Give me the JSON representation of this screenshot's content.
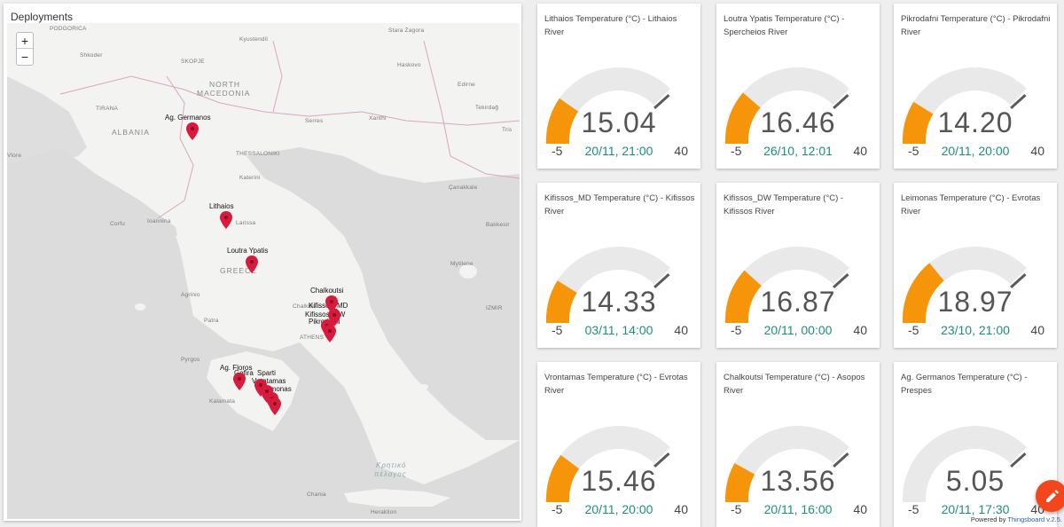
{
  "map": {
    "title": "Deployments",
    "zoom_in": "+",
    "zoom_out": "−",
    "places": [
      {
        "name": "PODGORICA",
        "cls": ""
      },
      {
        "name": "Kyustendil",
        "cls": ""
      },
      {
        "name": "Stara Zagora",
        "cls": ""
      },
      {
        "name": "Shkoder",
        "cls": ""
      },
      {
        "name": "SKOPJE",
        "cls": ""
      },
      {
        "name": "Haskovo",
        "cls": ""
      },
      {
        "name": "NORTH",
        "cls": "big"
      },
      {
        "name": "MACEDONIA",
        "cls": "big"
      },
      {
        "name": "Edirne",
        "cls": ""
      },
      {
        "name": "TIRANA",
        "cls": ""
      },
      {
        "name": "ALBANIA",
        "cls": "big"
      },
      {
        "name": "Serres",
        "cls": ""
      },
      {
        "name": "Xanthi",
        "cls": ""
      },
      {
        "name": "Tekirdağ",
        "cls": ""
      },
      {
        "name": "Tris",
        "cls": ""
      },
      {
        "name": "Vlore",
        "cls": ""
      },
      {
        "name": "THESSALONIKI",
        "cls": ""
      },
      {
        "name": "Katerini",
        "cls": ""
      },
      {
        "name": "Çanakkale",
        "cls": ""
      },
      {
        "name": "Ioannina",
        "cls": ""
      },
      {
        "name": "Corfu",
        "cls": ""
      },
      {
        "name": "Larissa",
        "cls": ""
      },
      {
        "name": "Balıkesir",
        "cls": ""
      },
      {
        "name": "GREECE",
        "cls": "big"
      },
      {
        "name": "Mytilene",
        "cls": ""
      },
      {
        "name": "Agrinio",
        "cls": ""
      },
      {
        "name": "Patra",
        "cls": ""
      },
      {
        "name": "Chalkida",
        "cls": ""
      },
      {
        "name": "ATHENS",
        "cls": ""
      },
      {
        "name": "IZMIR",
        "cls": ""
      },
      {
        "name": "Pyrgos",
        "cls": ""
      },
      {
        "name": "Kalamata",
        "cls": ""
      },
      {
        "name": "Κρητικό",
        "cls": "sea"
      },
      {
        "name": "πέλαγος",
        "cls": "sea"
      },
      {
        "name": "Heraklion",
        "cls": ""
      },
      {
        "name": "Chania",
        "cls": ""
      }
    ],
    "markers": [
      {
        "label": "Ag. Germanos"
      },
      {
        "label": "Lithaios"
      },
      {
        "label": "Loutra Ypatis"
      },
      {
        "label": "Chalkoutsi"
      },
      {
        "label": "Kifissos_MD"
      },
      {
        "label": "Kifissos_DW"
      },
      {
        "label": "Pikrodafni"
      },
      {
        "label": "Ag. Floros"
      },
      {
        "label": "Sparti"
      },
      {
        "label": "Gefira"
      },
      {
        "label": "Vrontamas"
      },
      {
        "label": "Leimonas"
      }
    ]
  },
  "gauges": [
    {
      "title": "Lithaios Temperature (°C) - Lithaios River",
      "value": "15.04",
      "num": 15.04,
      "time": "20/11, 21:00",
      "min_label": "-5",
      "max_label": "40",
      "min": -5,
      "max": 40
    },
    {
      "title": "Loutra Ypatis Temperature (°C) - Spercheios River",
      "value": "16.46",
      "num": 16.46,
      "time": "26/10, 12:01",
      "min_label": "-5",
      "max_label": "40",
      "min": -5,
      "max": 40
    },
    {
      "title": "Pikrodafni Temperature (°C) - Pikrodafni River",
      "value": "14.20",
      "num": 14.2,
      "time": "20/11, 20:00",
      "min_label": "-5",
      "max_label": "40",
      "min": -5,
      "max": 40
    },
    {
      "title": "Kifissos_MD Temperature (°C) - Kifissos River",
      "value": "14.33",
      "num": 14.33,
      "time": "03/11, 14:00",
      "min_label": "-5",
      "max_label": "40",
      "min": -5,
      "max": 40
    },
    {
      "title": "Kifissos_DW Temperature (°C) - Kifissos River",
      "value": "16.87",
      "num": 16.87,
      "time": "20/11, 00:00",
      "min_label": "-5",
      "max_label": "40",
      "min": -5,
      "max": 40
    },
    {
      "title": "Leimonas Temperature (°C) - Evrotas River",
      "value": "18.97",
      "num": 18.97,
      "time": "23/10, 21:00",
      "min_label": "-5",
      "max_label": "40",
      "min": -5,
      "max": 40
    },
    {
      "title": "Vrontamas Temperature (°C) - Evrotas River",
      "value": "15.46",
      "num": 15.46,
      "time": "20/11, 20:00",
      "min_label": "-5",
      "max_label": "40",
      "min": -5,
      "max": 40
    },
    {
      "title": "Chalkoutsi Temperature (°C) - Asopos River",
      "value": "13.56",
      "num": 13.56,
      "time": "20/11, 16:00",
      "min_label": "-5",
      "max_label": "40",
      "min": -5,
      "max": 40
    },
    {
      "title": "Ag. Germanos Temperature (°C) - Prespes",
      "value": "5.05",
      "num": 5.05,
      "time": "20/11, 17:30",
      "min_label": "-5",
      "max_label": "40",
      "min": -5,
      "max": 40
    }
  ],
  "colors": {
    "gauge_fill": "#f7950a",
    "gauge_track": "#e9e9e9",
    "timestamp": "#1b8f7e",
    "marker": "#d81b3c",
    "fab": "#f2471d"
  },
  "fab": {
    "icon": "edit-icon"
  },
  "footer": {
    "powered_prefix": "Powered by ",
    "powered_link": "Thingsboard v.2.5."
  }
}
